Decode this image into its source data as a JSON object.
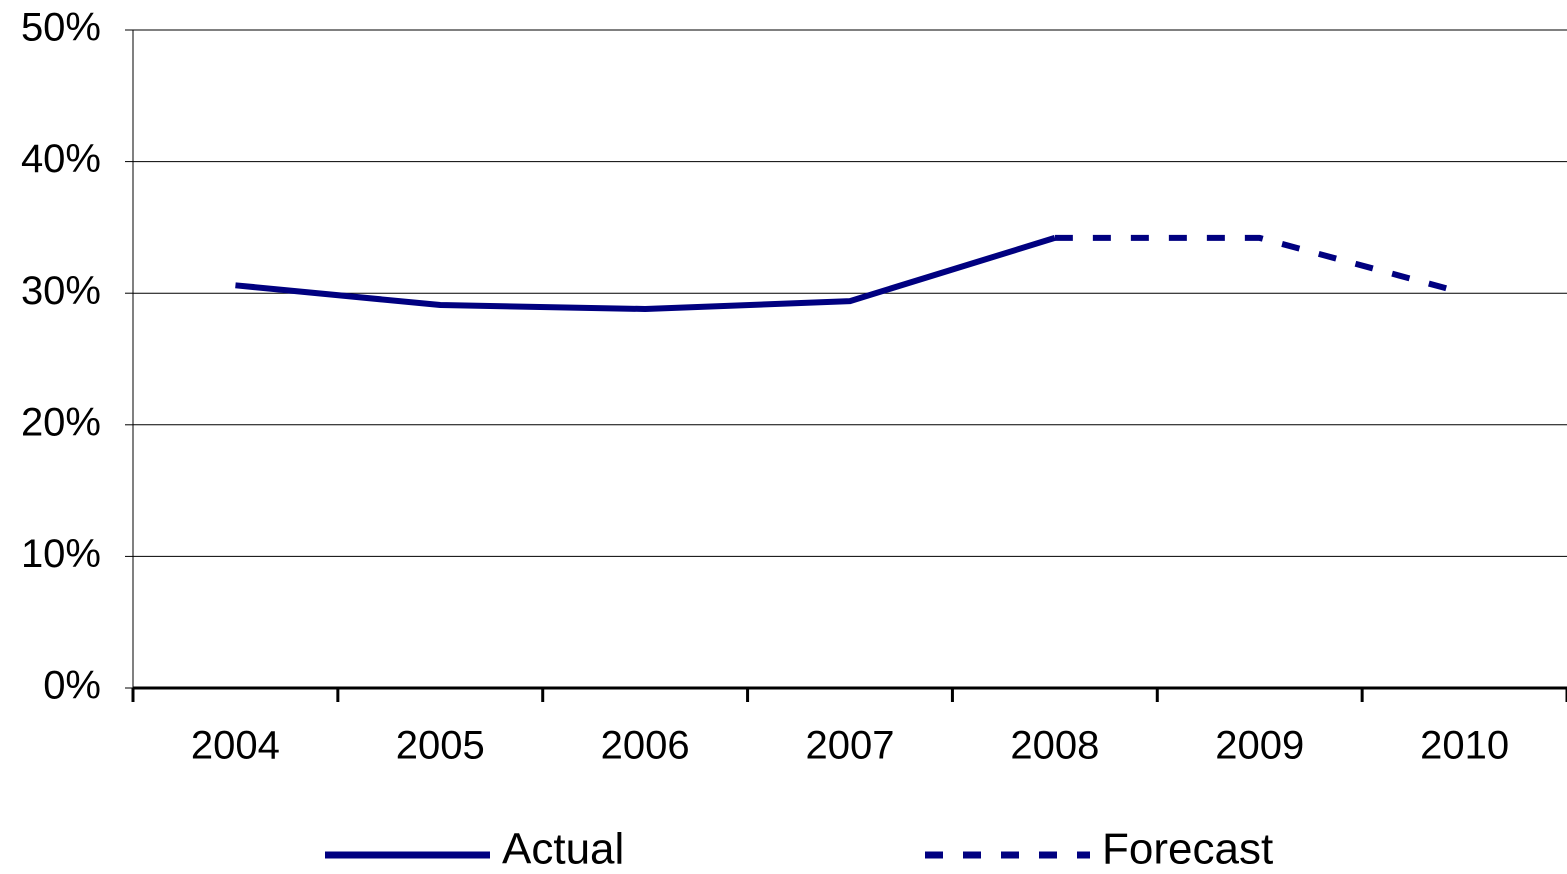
{
  "chart_data": {
    "type": "line",
    "categories": [
      "2004",
      "2005",
      "2006",
      "2007",
      "2008",
      "2009",
      "2010"
    ],
    "series": [
      {
        "name": "Actual",
        "color": "#000080",
        "dashed": false,
        "values": [
          30.6,
          29.1,
          28.8,
          29.4,
          34.2,
          null,
          null
        ]
      },
      {
        "name": "Forecast",
        "color": "#000080",
        "dashed": true,
        "values": [
          null,
          null,
          null,
          null,
          34.2,
          34.2,
          30.0
        ]
      }
    ],
    "ylim": [
      0,
      50
    ],
    "yticks": [
      {
        "value": 0,
        "label": "0%"
      },
      {
        "value": 10,
        "label": "10%"
      },
      {
        "value": 20,
        "label": "20%"
      },
      {
        "value": 30,
        "label": "30%"
      },
      {
        "value": 40,
        "label": "40%"
      },
      {
        "value": 50,
        "label": "50%"
      }
    ],
    "grid": true,
    "legend": "bottom"
  }
}
